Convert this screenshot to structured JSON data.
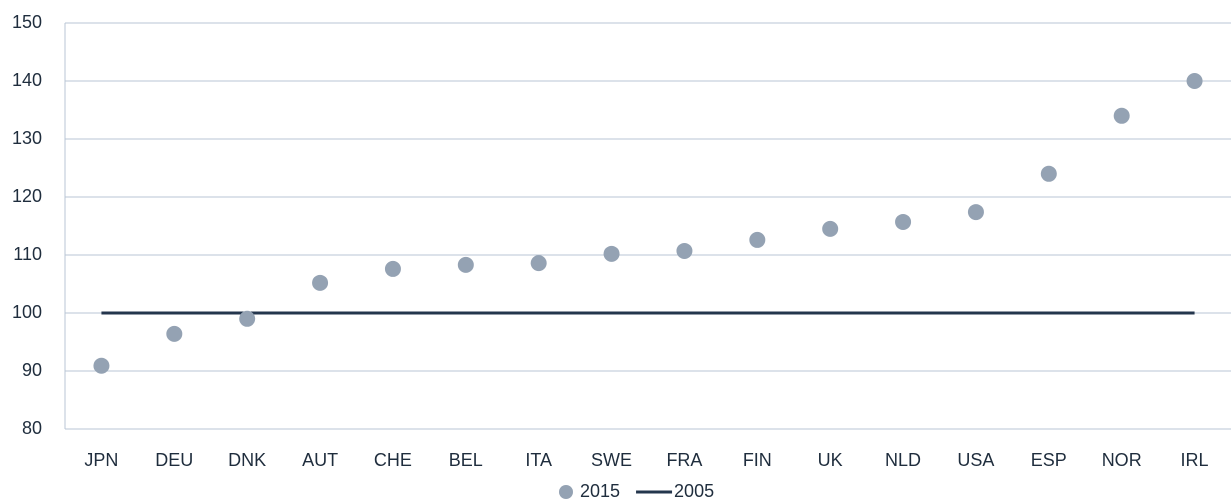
{
  "chart_data": {
    "type": "scatter-line",
    "categories": [
      "JPN",
      "DEU",
      "DNK",
      "AUT",
      "CHE",
      "BEL",
      "ITA",
      "SWE",
      "FRA",
      "FIN",
      "UK",
      "NLD",
      "USA",
      "ESP",
      "NOR",
      "IRL"
    ],
    "series": [
      {
        "name": "2015",
        "type": "scatter",
        "color": "#94a2b3",
        "values": [
          90.9,
          96.4,
          99.0,
          105.2,
          107.6,
          108.3,
          108.6,
          110.2,
          110.7,
          112.6,
          114.5,
          115.7,
          117.4,
          124.0,
          134.0,
          140.0
        ]
      },
      {
        "name": "2005",
        "type": "line",
        "color": "#24364d",
        "values": [
          100,
          100,
          100,
          100,
          100,
          100,
          100,
          100,
          100,
          100,
          100,
          100,
          100,
          100,
          100,
          100
        ]
      }
    ],
    "ylim": [
      80,
      150
    ],
    "yticks": [
      80,
      90,
      100,
      110,
      120,
      130,
      140,
      150
    ],
    "grid": true,
    "legend": "bottom"
  }
}
